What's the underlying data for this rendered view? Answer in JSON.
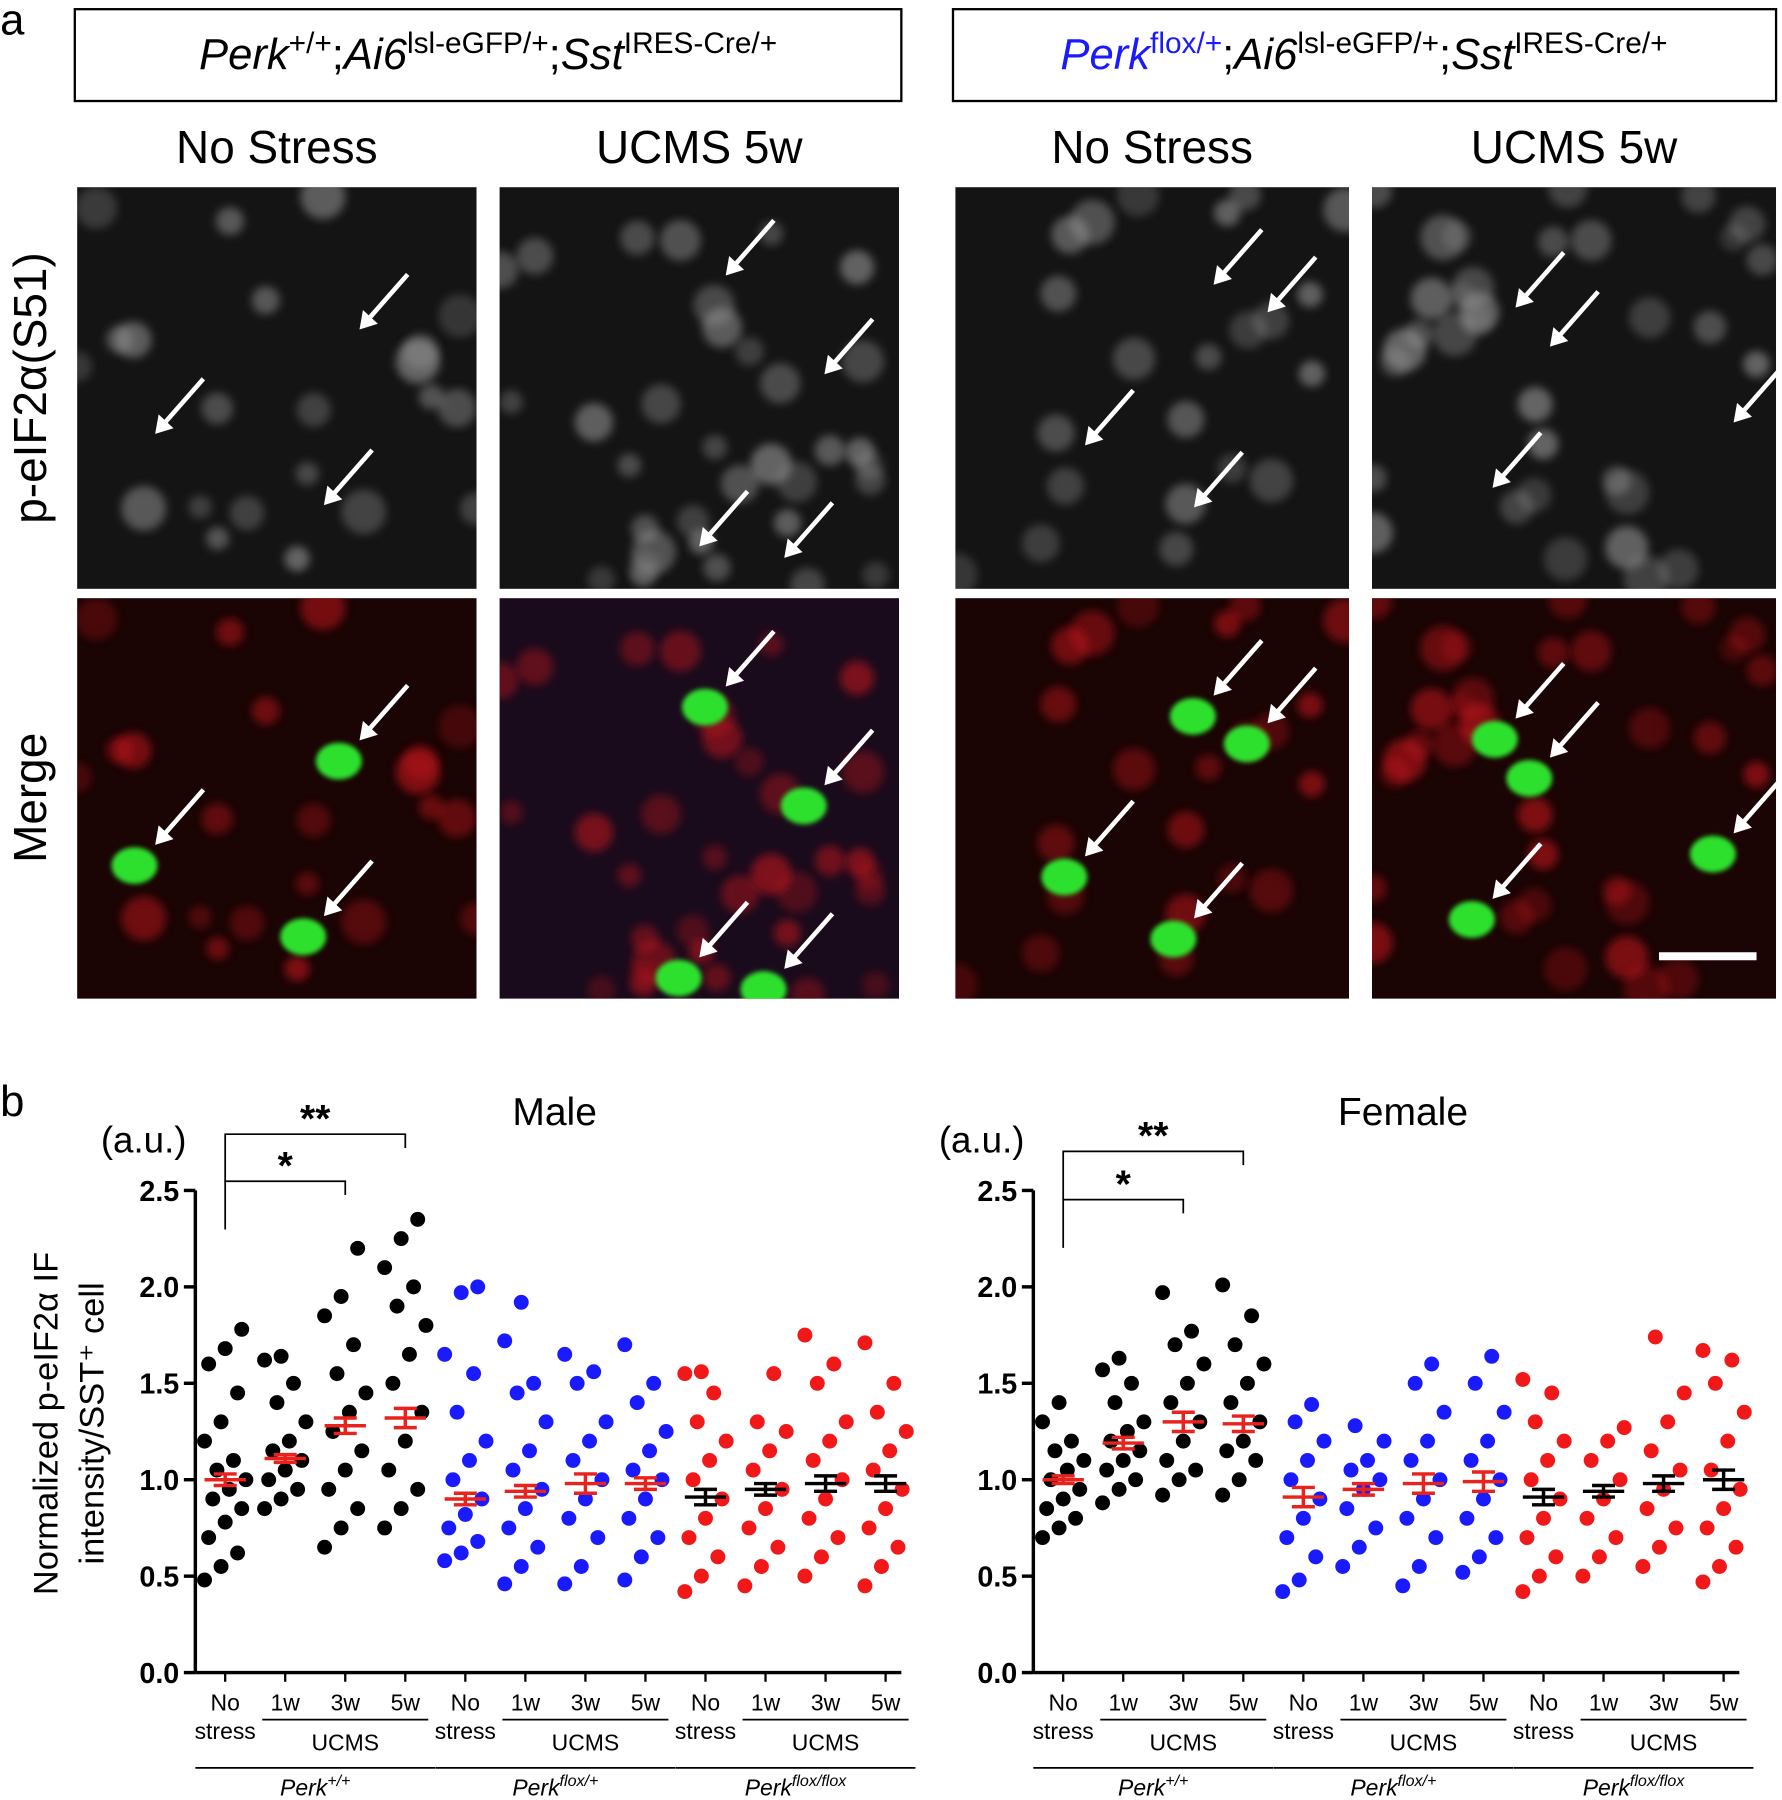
{
  "panel_a": {
    "label": "a",
    "genotypes": [
      {
        "segments": [
          {
            "text": "Perk",
            "style": "italic"
          },
          {
            "text": "+/+",
            "style": "sup"
          },
          {
            "text": ";"
          },
          {
            "text": "Ai6",
            "style": "italic"
          },
          {
            "text": "lsl-eGFP/+",
            "style": "sup"
          },
          {
            "text": ";"
          },
          {
            "text": "Sst",
            "style": "italic"
          },
          {
            "text": "IRES-Cre/+",
            "style": "sup"
          }
        ],
        "columns": [
          "No Stress",
          "UCMS 5w"
        ]
      },
      {
        "segments": [
          {
            "text": "Perk",
            "style": "italic",
            "color": "#1a1aff"
          },
          {
            "text": "flox/+",
            "style": "sup",
            "color": "#1a1aff"
          },
          {
            "text": ";"
          },
          {
            "text": "Ai6",
            "style": "italic"
          },
          {
            "text": "lsl-eGFP/+",
            "style": "sup"
          },
          {
            "text": ";"
          },
          {
            "text": "Sst",
            "style": "italic"
          },
          {
            "text": "IRES-Cre/+",
            "style": "sup"
          }
        ],
        "columns": [
          "No Stress",
          "UCMS 5w"
        ]
      }
    ],
    "rows": [
      {
        "text": "p-eIF2α(S51)",
        "color": "#e8221c"
      },
      {
        "text": "Merge",
        "color": "#000000"
      }
    ]
  },
  "panel_b": {
    "label": "b"
  },
  "chart_data": [
    {
      "type": "scatter",
      "title": "Male",
      "unit": "(a.u.)",
      "y_label": [
        "Normalized p-eIF2α IF",
        "intensity/SST⁺ cell"
      ],
      "ylim": [
        0,
        2.5
      ],
      "yticks": [
        {
          "value": 0,
          "label": "0.0"
        },
        0.5,
        {
          "value": 1,
          "label": "1.0"
        },
        1.5,
        {
          "value": 2,
          "label": "2.0"
        },
        2.5
      ],
      "significance": [
        {
          "label": "*",
          "from": 0,
          "to": 2
        },
        {
          "label": "**",
          "from": 0,
          "to": 3
        }
      ],
      "genotypes": [
        {
          "name": {
            "base": "Perk",
            "sup": "+/+"
          },
          "treatment": "UCMS",
          "groups": [
            {
              "category": [
                "No",
                "stress"
              ],
              "color": "#000000",
              "mean_color": "#e8221c",
              "mean": 1.0,
              "sem": 0.03,
              "values": [
                0.48,
                0.55,
                0.62,
                0.7,
                0.78,
                0.85,
                0.9,
                0.95,
                1.0,
                1.05,
                1.1,
                1.2,
                1.3,
                1.45,
                1.6,
                1.68,
                1.78
              ]
            },
            {
              "category": [
                "1w"
              ],
              "color": "#000000",
              "mean_color": "#e8221c",
              "mean": 1.11,
              "sem": 0.02,
              "values": [
                0.85,
                0.9,
                0.95,
                1.0,
                1.05,
                1.1,
                1.15,
                1.2,
                1.3,
                1.4,
                1.5,
                1.62,
                1.64
              ]
            },
            {
              "category": [
                "3w"
              ],
              "color": "#000000",
              "mean_color": "#e8221c",
              "mean": 1.28,
              "sem": 0.04,
              "values": [
                0.65,
                0.75,
                0.85,
                0.95,
                1.05,
                1.15,
                1.25,
                1.35,
                1.45,
                1.55,
                1.7,
                1.85,
                1.95,
                2.2
              ]
            },
            {
              "category": [
                "5w"
              ],
              "color": "#000000",
              "mean_color": "#e8221c",
              "mean": 1.32,
              "sem": 0.05,
              "values": [
                0.75,
                0.85,
                0.95,
                1.05,
                1.2,
                1.35,
                1.5,
                1.65,
                1.8,
                1.9,
                2.0,
                2.1,
                2.25,
                2.35
              ]
            }
          ]
        },
        {
          "name": {
            "base": "Perk",
            "sup": "flox/+"
          },
          "treatment": "UCMS",
          "groups": [
            {
              "category": [
                "No",
                "stress"
              ],
              "color": "#1a1aff",
              "mean_color": "#e8221c",
              "mean": 0.9,
              "sem": 0.03,
              "values": [
                0.58,
                0.62,
                0.68,
                0.75,
                0.82,
                0.9,
                1.0,
                1.1,
                1.2,
                1.35,
                1.55,
                1.65,
                1.97,
                2.0
              ]
            },
            {
              "category": [
                "1w"
              ],
              "color": "#1a1aff",
              "mean_color": "#e8221c",
              "mean": 0.94,
              "sem": 0.03,
              "values": [
                0.46,
                0.55,
                0.65,
                0.75,
                0.85,
                0.95,
                1.05,
                1.15,
                1.3,
                1.45,
                1.5,
                1.72,
                1.92
              ]
            },
            {
              "category": [
                "3w"
              ],
              "color": "#1a1aff",
              "mean_color": "#e8221c",
              "mean": 0.98,
              "sem": 0.05,
              "values": [
                0.46,
                0.55,
                0.7,
                0.8,
                0.9,
                1.0,
                1.1,
                1.2,
                1.3,
                1.5,
                1.56,
                1.65
              ]
            },
            {
              "category": [
                "5w"
              ],
              "color": "#1a1aff",
              "mean_color": "#e8221c",
              "mean": 0.98,
              "sem": 0.03,
              "values": [
                0.48,
                0.6,
                0.7,
                0.8,
                0.9,
                1.0,
                1.05,
                1.15,
                1.25,
                1.4,
                1.5,
                1.7
              ]
            }
          ]
        },
        {
          "name": {
            "base": "Perk",
            "sup": "flox/flox"
          },
          "treatment": "UCMS",
          "groups": [
            {
              "category": [
                "No",
                "stress"
              ],
              "color": "#f01818",
              "mean_color": "#000000",
              "mean": 0.91,
              "sem": 0.04,
              "values": [
                0.42,
                0.5,
                0.6,
                0.7,
                0.8,
                0.9,
                1.0,
                1.1,
                1.2,
                1.3,
                1.45,
                1.55,
                1.56
              ]
            },
            {
              "category": [
                "1w"
              ],
              "color": "#f01818",
              "mean_color": "#000000",
              "mean": 0.95,
              "sem": 0.03,
              "values": [
                0.45,
                0.55,
                0.65,
                0.75,
                0.85,
                0.95,
                1.05,
                1.15,
                1.25,
                1.3,
                1.55
              ]
            },
            {
              "category": [
                "3w"
              ],
              "color": "#f01818",
              "mean_color": "#000000",
              "mean": 0.98,
              "sem": 0.04,
              "values": [
                0.5,
                0.6,
                0.7,
                0.8,
                0.9,
                1.0,
                1.1,
                1.2,
                1.3,
                1.5,
                1.6,
                1.75
              ]
            },
            {
              "category": [
                "5w"
              ],
              "color": "#f01818",
              "mean_color": "#000000",
              "mean": 0.98,
              "sem": 0.04,
              "values": [
                0.45,
                0.55,
                0.65,
                0.75,
                0.85,
                0.95,
                1.05,
                1.15,
                1.25,
                1.35,
                1.5,
                1.71
              ]
            }
          ]
        }
      ]
    },
    {
      "type": "scatter",
      "title": "Female",
      "unit": "(a.u.)",
      "ylim": [
        0,
        2.5
      ],
      "yticks": [
        {
          "value": 0,
          "label": "0.0"
        },
        0.5,
        {
          "value": 1,
          "label": "1.0"
        },
        1.5,
        {
          "value": 2,
          "label": "2.0"
        },
        2.5
      ],
      "significance": [
        {
          "label": "*",
          "from": 0,
          "to": 2
        },
        {
          "label": "**",
          "from": 0,
          "to": 3
        }
      ],
      "genotypes": [
        {
          "name": {
            "base": "Perk",
            "sup": "+/+"
          },
          "treatment": "UCMS",
          "groups": [
            {
              "category": [
                "No",
                "stress"
              ],
              "color": "#000000",
              "mean_color": "#e8221c",
              "mean": 1.0,
              "sem": 0.02,
              "values": [
                0.7,
                0.75,
                0.8,
                0.85,
                0.9,
                0.95,
                1.0,
                1.05,
                1.1,
                1.15,
                1.2,
                1.3,
                1.4
              ]
            },
            {
              "category": [
                "1w"
              ],
              "color": "#000000",
              "mean_color": "#e8221c",
              "mean": 1.19,
              "sem": 0.03,
              "values": [
                0.88,
                0.95,
                1.0,
                1.05,
                1.1,
                1.15,
                1.2,
                1.25,
                1.3,
                1.4,
                1.5,
                1.57,
                1.63
              ]
            },
            {
              "category": [
                "3w"
              ],
              "color": "#000000",
              "mean_color": "#e8221c",
              "mean": 1.3,
              "sem": 0.05,
              "values": [
                0.92,
                1.0,
                1.05,
                1.1,
                1.2,
                1.3,
                1.4,
                1.5,
                1.6,
                1.7,
                1.77,
                1.97
              ]
            },
            {
              "category": [
                "5w"
              ],
              "color": "#000000",
              "mean_color": "#e8221c",
              "mean": 1.29,
              "sem": 0.04,
              "values": [
                0.92,
                1.0,
                1.1,
                1.15,
                1.2,
                1.3,
                1.4,
                1.5,
                1.6,
                1.7,
                1.85,
                2.01
              ]
            }
          ]
        },
        {
          "name": {
            "base": "Perk",
            "sup": "flox/+"
          },
          "treatment": "UCMS",
          "groups": [
            {
              "category": [
                "No",
                "stress"
              ],
              "color": "#1a1aff",
              "mean_color": "#e8221c",
              "mean": 0.91,
              "sem": 0.05,
              "values": [
                0.42,
                0.48,
                0.6,
                0.7,
                0.8,
                0.9,
                1.0,
                1.1,
                1.2,
                1.3,
                1.39
              ]
            },
            {
              "category": [
                "1w"
              ],
              "color": "#1a1aff",
              "mean_color": "#e8221c",
              "mean": 0.95,
              "sem": 0.03,
              "values": [
                0.55,
                0.65,
                0.75,
                0.85,
                0.95,
                1.0,
                1.05,
                1.1,
                1.2,
                1.28
              ]
            },
            {
              "category": [
                "3w"
              ],
              "color": "#1a1aff",
              "mean_color": "#e8221c",
              "mean": 0.98,
              "sem": 0.05,
              "values": [
                0.45,
                0.55,
                0.7,
                0.8,
                0.9,
                1.0,
                1.1,
                1.2,
                1.35,
                1.5,
                1.6
              ]
            },
            {
              "category": [
                "5w"
              ],
              "color": "#1a1aff",
              "mean_color": "#e8221c",
              "mean": 0.99,
              "sem": 0.05,
              "values": [
                0.52,
                0.6,
                0.7,
                0.8,
                0.9,
                1.0,
                1.1,
                1.2,
                1.35,
                1.5,
                1.64
              ]
            }
          ]
        },
        {
          "name": {
            "base": "Perk",
            "sup": "flox/flox"
          },
          "treatment": "UCMS",
          "groups": [
            {
              "category": [
                "No",
                "stress"
              ],
              "color": "#f01818",
              "mean_color": "#000000",
              "mean": 0.91,
              "sem": 0.04,
              "values": [
                0.42,
                0.5,
                0.6,
                0.7,
                0.8,
                0.9,
                1.0,
                1.1,
                1.2,
                1.3,
                1.45,
                1.52
              ]
            },
            {
              "category": [
                "1w"
              ],
              "color": "#f01818",
              "mean_color": "#000000",
              "mean": 0.94,
              "sem": 0.03,
              "values": [
                0.5,
                0.6,
                0.7,
                0.8,
                0.9,
                1.0,
                1.1,
                1.2,
                1.27
              ]
            },
            {
              "category": [
                "3w"
              ],
              "color": "#f01818",
              "mean_color": "#000000",
              "mean": 0.98,
              "sem": 0.04,
              "values": [
                0.55,
                0.65,
                0.75,
                0.85,
                0.95,
                1.05,
                1.15,
                1.3,
                1.45,
                1.74
              ]
            },
            {
              "category": [
                "5w"
              ],
              "color": "#f01818",
              "mean_color": "#000000",
              "mean": 1.0,
              "sem": 0.05,
              "values": [
                0.47,
                0.55,
                0.65,
                0.75,
                0.85,
                0.95,
                1.05,
                1.2,
                1.35,
                1.5,
                1.62,
                1.67
              ]
            }
          ]
        }
      ]
    }
  ]
}
